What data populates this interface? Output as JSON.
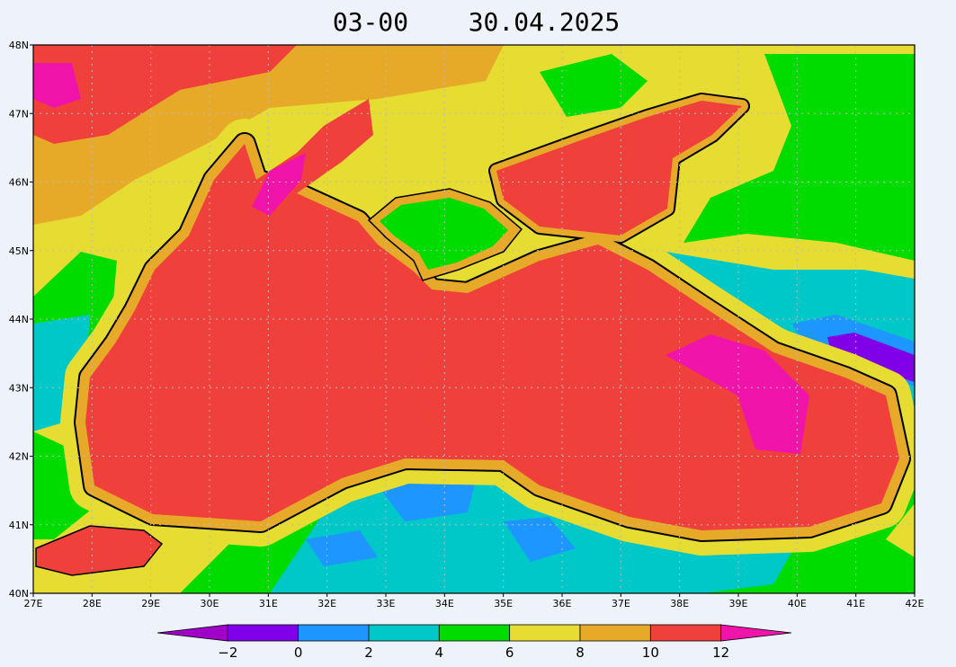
{
  "title": {
    "time": "03-00",
    "date": "30.04.2025"
  },
  "axes": {
    "lat_labels": [
      "40N",
      "41N",
      "42N",
      "43N",
      "44N",
      "45N",
      "46N",
      "47N",
      "48N"
    ],
    "lon_labels": [
      "27E",
      "28E",
      "29E",
      "30E",
      "31E",
      "32E",
      "33E",
      "34E",
      "35E",
      "36E",
      "37E",
      "38E",
      "39E",
      "40E",
      "41E",
      "42E"
    ]
  },
  "colorbar": {
    "labels": [
      "−2",
      "0",
      "2",
      "4",
      "6",
      "8",
      "10",
      "12"
    ],
    "colors": [
      "#a000c8",
      "#8000e8",
      "#1e96ff",
      "#00c8c8",
      "#00dc00",
      "#e6dc32",
      "#e6aa28",
      "#f0403c",
      "#f014aa"
    ]
  }
}
